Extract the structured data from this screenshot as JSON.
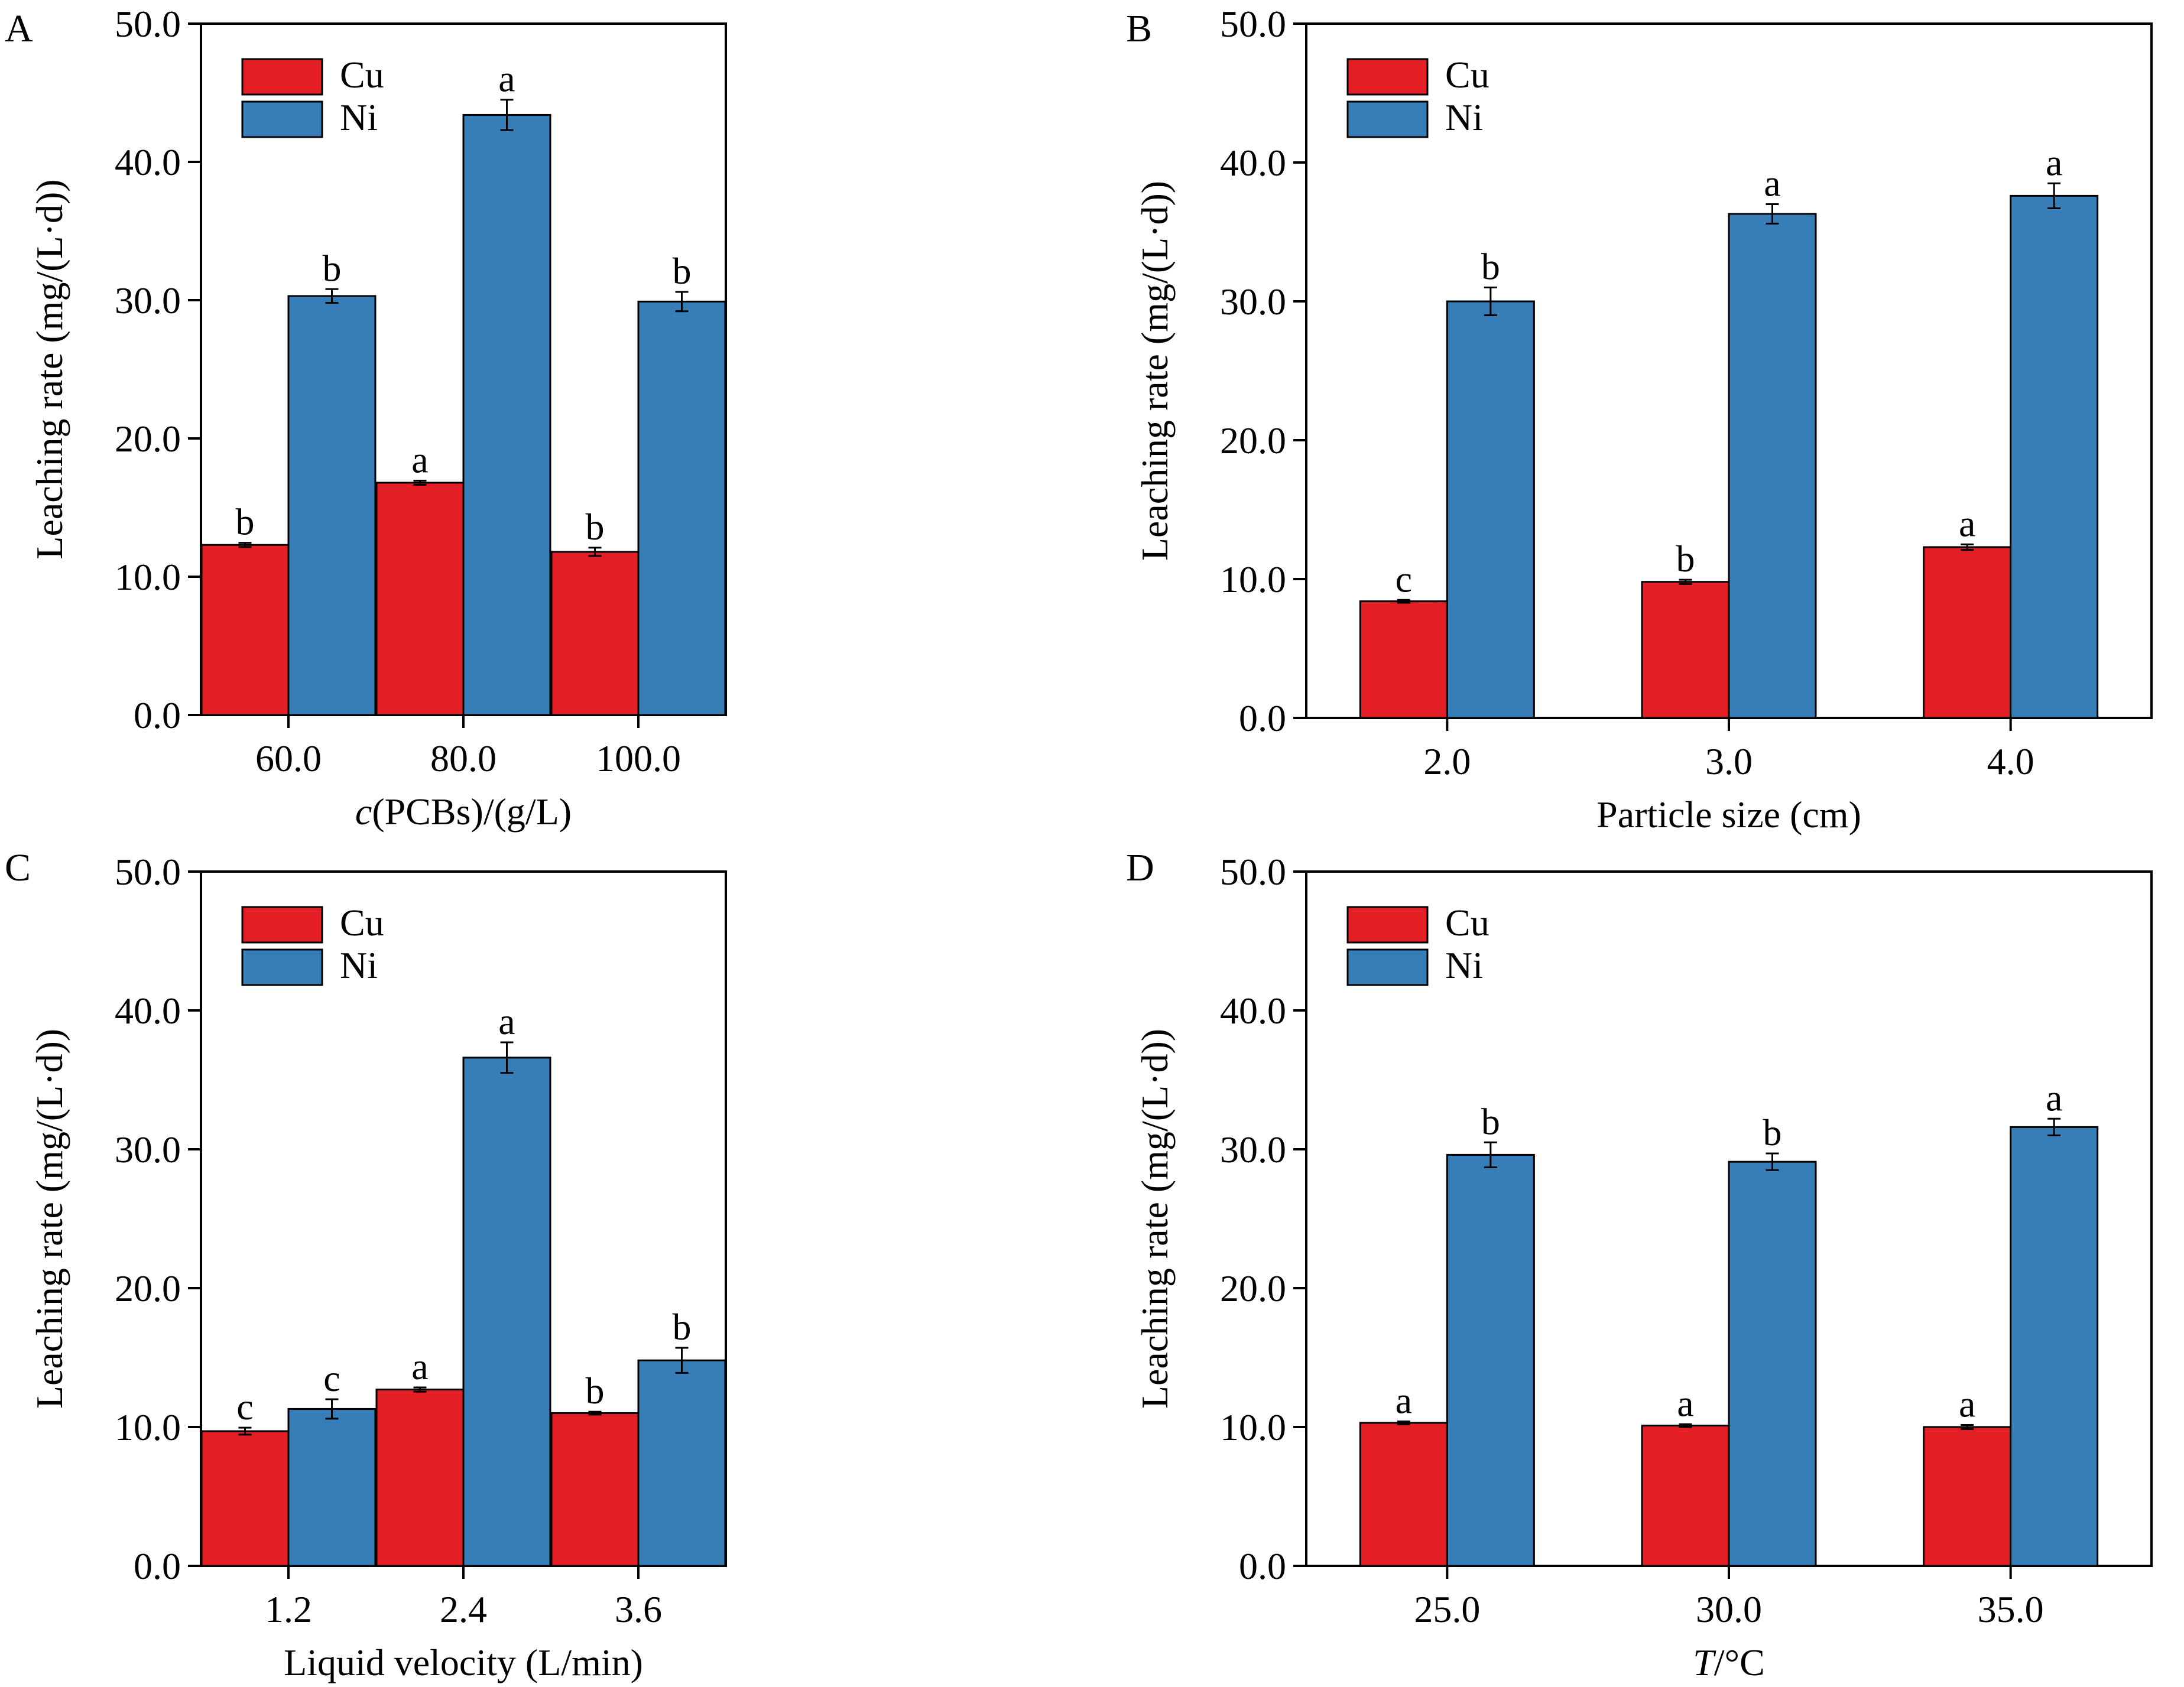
{
  "colors": {
    "Cu": "#e31e24",
    "Ni": "#377eb8",
    "axis": "#000000"
  },
  "chart_data": [
    {
      "panel": "A",
      "type": "bar",
      "categories": [
        "60.0",
        "80.0",
        "100.0"
      ],
      "xlabel_italic": "c",
      "xlabel": "(PCBs)/(g/L)",
      "ylabel": "Leaching rate (mg/(L·d))",
      "ylim": [
        0,
        50
      ],
      "yticks": [
        "0.0",
        "10.0",
        "20.0",
        "30.0",
        "40.0",
        "50.0"
      ],
      "legend": "top-left",
      "series": [
        {
          "name": "Cu",
          "values": [
            12.3,
            16.8,
            11.8
          ],
          "errors": [
            0.15,
            0.15,
            0.3
          ],
          "letters": [
            "b",
            "a",
            "b"
          ]
        },
        {
          "name": "Ni",
          "values": [
            30.3,
            43.4,
            29.9
          ],
          "errors": [
            0.5,
            1.1,
            0.7
          ],
          "letters": [
            "b",
            "a",
            "b"
          ]
        }
      ]
    },
    {
      "panel": "B",
      "type": "bar",
      "categories": [
        "2.0",
        "3.0",
        "4.0"
      ],
      "xlabel_italic": "",
      "xlabel": "Particle size (cm)",
      "ylabel": "Leaching rate (mg/(L·d))",
      "ylim": [
        0,
        50
      ],
      "yticks": [
        "0.0",
        "10.0",
        "20.0",
        "30.0",
        "40.0",
        "50.0"
      ],
      "legend": "top-left",
      "series": [
        {
          "name": "Cu",
          "values": [
            8.4,
            9.8,
            12.3
          ],
          "errors": [
            0.1,
            0.15,
            0.2
          ],
          "letters": [
            "c",
            "b",
            "a"
          ]
        },
        {
          "name": "Ni",
          "values": [
            30.0,
            36.3,
            37.6
          ],
          "errors": [
            1.0,
            0.7,
            0.9
          ],
          "letters": [
            "b",
            "a",
            "a"
          ]
        }
      ]
    },
    {
      "panel": "C",
      "type": "bar",
      "categories": [
        "1.2",
        "2.4",
        "3.6"
      ],
      "xlabel_italic": "",
      "xlabel": "Liquid velocity (L/min)",
      "ylabel": "Leaching rate (mg/(L·d))",
      "ylim": [
        0,
        50
      ],
      "yticks": [
        "0.0",
        "10.0",
        "20.0",
        "30.0",
        "40.0",
        "50.0"
      ],
      "legend": "top-left",
      "series": [
        {
          "name": "Cu",
          "values": [
            9.7,
            12.7,
            11.0
          ],
          "errors": [
            0.25,
            0.15,
            0.1
          ],
          "letters": [
            "c",
            "a",
            "b"
          ]
        },
        {
          "name": "Ni",
          "values": [
            11.3,
            36.6,
            14.8
          ],
          "errors": [
            0.7,
            1.1,
            0.9
          ],
          "letters": [
            "c",
            "a",
            "b"
          ]
        }
      ]
    },
    {
      "panel": "D",
      "type": "bar",
      "categories": [
        "25.0",
        "30.0",
        "35.0"
      ],
      "xlabel_italic": "T",
      "xlabel": "/°C",
      "ylabel": "Leaching rate (mg/(L·d))",
      "ylim": [
        0,
        50
      ],
      "yticks": [
        "0.0",
        "10.0",
        "20.0",
        "30.0",
        "40.0",
        "50.0"
      ],
      "legend": "top-left",
      "series": [
        {
          "name": "Cu",
          "values": [
            10.3,
            10.1,
            10.0
          ],
          "errors": [
            0.1,
            0.1,
            0.15
          ],
          "letters": [
            "a",
            "a",
            "a"
          ]
        },
        {
          "name": "Ni",
          "values": [
            29.6,
            29.1,
            31.6
          ],
          "errors": [
            0.9,
            0.6,
            0.6
          ],
          "letters": [
            "b",
            "b",
            "a"
          ]
        }
      ]
    }
  ]
}
